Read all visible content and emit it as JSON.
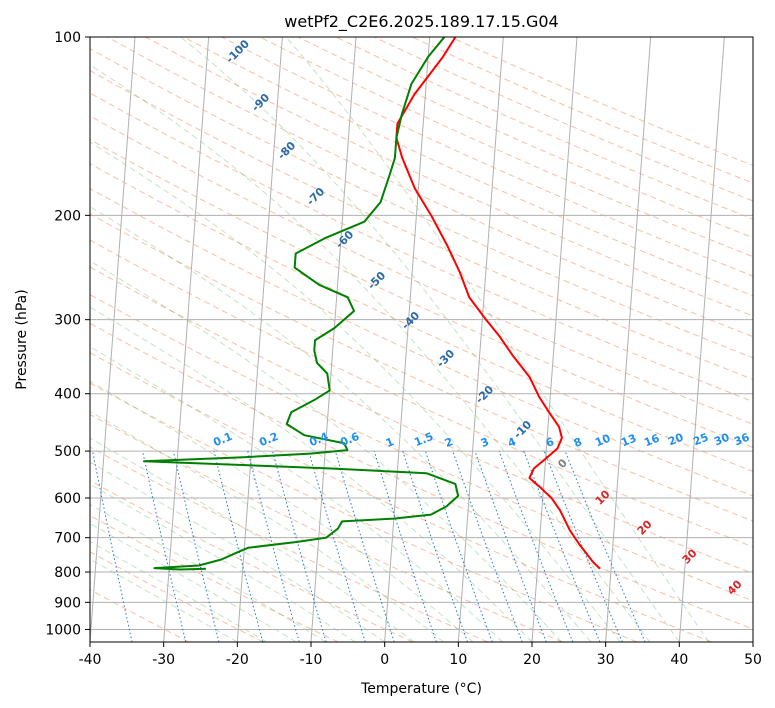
{
  "chart_data": {
    "type": "line",
    "subtype": "skew-t log-p diagram",
    "title": "wetPf2_C2E6.2025.189.17.15.G04",
    "xlabel": "Temperature (°C)",
    "ylabel": "Pressure (hPa)",
    "xlim": [
      -40,
      50
    ],
    "ylim": [
      1050,
      100
    ],
    "y_scale": "log",
    "x_ticks": [
      "-40",
      "-30",
      "-20",
      "-10",
      "0",
      "10",
      "20",
      "30",
      "40",
      "50"
    ],
    "y_ticks": [
      "100",
      "200",
      "300",
      "400",
      "500",
      "600",
      "700",
      "800",
      "900",
      "1000"
    ],
    "grid": true,
    "series": [
      {
        "role": "temperature",
        "color": "#ff0000",
        "points": [
          [
            28.5,
            790
          ],
          [
            27.5,
            770
          ],
          [
            25.5,
            720
          ],
          [
            24.0,
            680
          ],
          [
            22.5,
            630
          ],
          [
            21.2,
            600
          ],
          [
            19.5,
            575
          ],
          [
            18.0,
            555
          ],
          [
            18.5,
            535
          ],
          [
            20.0,
            515
          ],
          [
            21.5,
            495
          ],
          [
            22.0,
            475
          ],
          [
            21.5,
            455
          ],
          [
            20.0,
            430
          ],
          [
            18.5,
            405
          ],
          [
            17.0,
            375
          ],
          [
            14.5,
            345
          ],
          [
            12.5,
            320
          ],
          [
            10.5,
            300
          ],
          [
            8.0,
            275
          ],
          [
            6.5,
            250
          ],
          [
            4.5,
            225
          ],
          [
            2.0,
            200
          ],
          [
            -0.5,
            180
          ],
          [
            -2.5,
            160
          ],
          [
            -3.5,
            148
          ],
          [
            -3.5,
            140
          ],
          [
            -1.5,
            125
          ],
          [
            0.5,
            115
          ],
          [
            2.0,
            108
          ],
          [
            3.5,
            100
          ]
        ]
      },
      {
        "role": "dewpoint",
        "color": "#008000",
        "points": [
          [
            -25.0,
            790
          ],
          [
            -28.5,
            792
          ],
          [
            -32.0,
            788
          ],
          [
            -26.0,
            780
          ],
          [
            -23.0,
            762
          ],
          [
            -21.0,
            742
          ],
          [
            -19.5,
            728
          ],
          [
            -13.0,
            712
          ],
          [
            -9.0,
            700
          ],
          [
            -7.5,
            676
          ],
          [
            -7.0,
            657
          ],
          [
            0.0,
            650
          ],
          [
            5.0,
            640
          ],
          [
            7.0,
            620
          ],
          [
            8.5,
            595
          ],
          [
            8.0,
            568
          ],
          [
            4.0,
            545
          ],
          [
            -9.0,
            535
          ],
          [
            -34.5,
            520
          ],
          [
            -21.0,
            512
          ],
          [
            -12.0,
            505
          ],
          [
            -7.0,
            498
          ],
          [
            -7.5,
            485
          ],
          [
            -13.0,
            470
          ],
          [
            -15.5,
            450
          ],
          [
            -15.0,
            430
          ],
          [
            -12.0,
            410
          ],
          [
            -10.0,
            395
          ],
          [
            -10.5,
            370
          ],
          [
            -12.0,
            355
          ],
          [
            -12.5,
            338
          ],
          [
            -12.5,
            325
          ],
          [
            -10.0,
            310
          ],
          [
            -7.5,
            290
          ],
          [
            -8.5,
            275
          ],
          [
            -12.5,
            262
          ],
          [
            -16.0,
            245
          ],
          [
            -16.0,
            232
          ],
          [
            -12.0,
            218
          ],
          [
            -7.0,
            205
          ],
          [
            -5.0,
            190
          ],
          [
            -4.0,
            170
          ],
          [
            -3.5,
            160
          ],
          [
            -3.5,
            148
          ],
          [
            -3.0,
            135
          ],
          [
            -2.0,
            120
          ],
          [
            0.0,
            108
          ],
          [
            2.0,
            100
          ]
        ]
      }
    ],
    "dry_adiabat_labels": [
      "-100",
      "-90",
      "-80",
      "-70",
      "-60",
      "-50",
      "-40",
      "-30",
      "-20",
      "-10",
      "0",
      "10",
      "20",
      "30",
      "40"
    ],
    "mixing_ratio_labels": [
      "0.1",
      "0.2",
      "0.4",
      "0.6",
      "1",
      "1.5",
      "2",
      "3",
      "4",
      "6",
      "8",
      "10",
      "13",
      "16",
      "20",
      "25",
      "30",
      "36"
    ]
  }
}
